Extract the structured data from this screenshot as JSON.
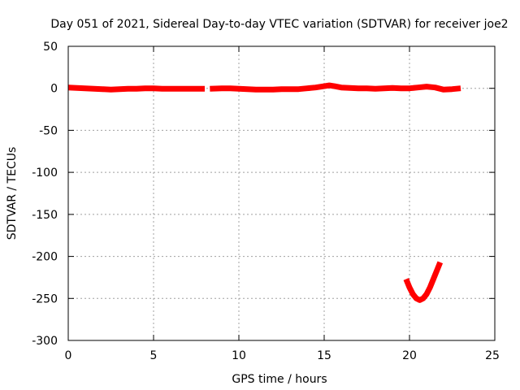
{
  "chart_data": {
    "type": "line",
    "title": "Day 051 of 2021, Sidereal Day-to-day VTEC variation (SDTVAR) for receiver joe2",
    "xlabel": "GPS time / hours",
    "ylabel": "SDTVAR / TECUs",
    "xlim": [
      0,
      25
    ],
    "ylim": [
      -300,
      50
    ],
    "xticks": [
      "0",
      "5",
      "10",
      "15",
      "20",
      "25"
    ],
    "yticks": [
      "50",
      "0",
      "-50",
      "-100",
      "-150",
      "-200",
      "-250",
      "-300"
    ],
    "grid": true,
    "legend": "none",
    "series": [
      {
        "color": "#ff0000",
        "segments": [
          {
            "x": [
              0.0,
              0.5,
              1.0,
              1.5,
              2.0,
              2.5,
              3.0,
              3.5,
              4.0,
              4.5,
              5.0,
              5.5,
              6.0,
              6.5,
              7.0,
              7.5,
              8.0
            ],
            "y": [
              1,
              0.5,
              0,
              -0.5,
              -1,
              -1.5,
              -1,
              -0.5,
              -0.5,
              0,
              0,
              -0.5,
              -0.5,
              -0.5,
              -0.5,
              -0.5,
              -0.5
            ]
          },
          {
            "x": [
              8.3,
              9.0,
              9.5,
              10.0,
              10.5,
              11.0,
              11.5,
              12.0,
              12.5,
              13.0,
              13.5,
              14.0,
              14.5,
              15.0,
              15.3,
              15.6,
              16.0,
              16.5,
              17.0,
              17.5,
              18.0,
              18.5,
              19.0,
              19.5,
              20.0,
              20.5,
              21.0,
              21.5,
              22.0,
              22.5,
              23.0
            ],
            "y": [
              -0.5,
              0,
              0,
              -0.5,
              -1,
              -1.5,
              -1.5,
              -1.5,
              -1,
              -1,
              -1,
              0,
              1,
              2.5,
              3.5,
              2.5,
              1,
              0.5,
              0,
              0,
              -0.5,
              0,
              0.5,
              0,
              0,
              1,
              2,
              1,
              -1.5,
              -1,
              0
            ]
          },
          {
            "x": [
              19.8,
              20.0,
              20.2,
              20.4,
              20.6,
              20.8,
              21.0,
              21.2,
              21.4,
              21.6,
              21.8
            ],
            "y": [
              -227,
              -237,
              -245,
              -250,
              -252,
              -250,
              -245,
              -237,
              -227,
              -217,
              -207
            ]
          }
        ]
      }
    ]
  }
}
